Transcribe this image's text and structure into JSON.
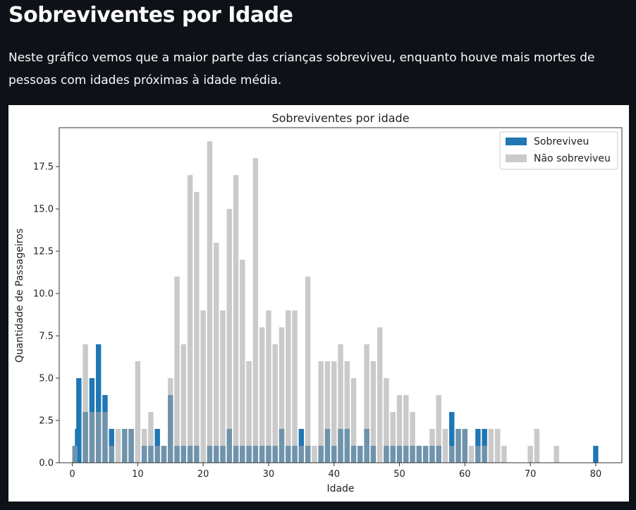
{
  "page": {
    "title": "Sobreviventes por Idade",
    "description": "Neste gráfico vemos que a maior parte das crianças sobreviveu, enquanto houve mais mortes de pessoas com idades próximas à idade média."
  },
  "colors": {
    "survived": "#1f77b4",
    "died": "#a6a6a6",
    "background": "#0e1117"
  },
  "chart_data": {
    "type": "bar",
    "title": "Sobreviventes por idade",
    "xlabel": "Idade",
    "ylabel": "Quantidade de Passageiros",
    "xlim": [
      -2,
      84
    ],
    "ylim": [
      0,
      19.8
    ],
    "xticks": [
      0,
      10,
      20,
      30,
      40,
      50,
      60,
      70,
      80
    ],
    "yticks": [
      0.0,
      2.5,
      5.0,
      7.5,
      10.0,
      12.5,
      15.0,
      17.5
    ],
    "grid": false,
    "legend_position": "top-right",
    "series": [
      {
        "name": "Sobreviveu",
        "x": [
          0.4,
          0.8,
          1,
          2,
          3,
          4,
          5,
          6,
          8,
          9,
          11,
          12,
          13,
          14,
          15,
          16,
          17,
          18,
          19,
          21,
          22,
          23,
          24,
          25,
          26,
          27,
          28,
          29,
          30,
          31,
          32,
          33,
          34,
          35,
          36,
          38,
          39,
          40,
          41,
          42,
          43,
          44,
          45,
          46,
          48,
          49,
          50,
          51,
          52,
          53,
          54,
          55,
          56,
          58,
          59,
          60,
          62,
          63,
          80
        ],
        "values": [
          1,
          2,
          5,
          3,
          5,
          7,
          4,
          2,
          2,
          2,
          1,
          1,
          2,
          1,
          4,
          1,
          1,
          1,
          1,
          1,
          1,
          1,
          2,
          1,
          1,
          1,
          1,
          1,
          1,
          1,
          2,
          1,
          1,
          2,
          1,
          1,
          2,
          1,
          2,
          2,
          1,
          1,
          2,
          1,
          1,
          1,
          1,
          1,
          1,
          1,
          1,
          1,
          1,
          3,
          2,
          2,
          2,
          2,
          1
        ]
      },
      {
        "name": "Não sobreviveu",
        "x": [
          0.4,
          2,
          3,
          4,
          5,
          6,
          7,
          8,
          9,
          10,
          11,
          12,
          13,
          14,
          15,
          16,
          17,
          18,
          19,
          20,
          21,
          22,
          23,
          24,
          25,
          26,
          27,
          28,
          29,
          30,
          31,
          32,
          33,
          34,
          35,
          36,
          37,
          38,
          39,
          40,
          41,
          42,
          43,
          44,
          45,
          46,
          47,
          48,
          49,
          50,
          51,
          52,
          53,
          54,
          55,
          56,
          57,
          58,
          59,
          60,
          61,
          62,
          63,
          64,
          65,
          66,
          70,
          71,
          74
        ],
        "values": [
          1,
          7,
          3,
          3,
          3,
          1,
          2,
          2,
          2,
          6,
          2,
          3,
          1,
          1,
          5,
          11,
          7,
          17,
          16,
          9,
          19,
          13,
          9,
          15,
          17,
          12,
          6,
          18,
          8,
          9,
          7,
          8,
          9,
          9,
          1,
          11,
          1,
          6,
          6,
          6,
          7,
          6,
          5,
          1,
          7,
          6,
          8,
          5,
          3,
          4,
          4,
          3,
          1,
          1,
          2,
          4,
          2,
          1,
          2,
          2,
          1,
          1,
          1,
          2,
          2,
          1,
          1,
          2,
          1
        ]
      }
    ]
  }
}
